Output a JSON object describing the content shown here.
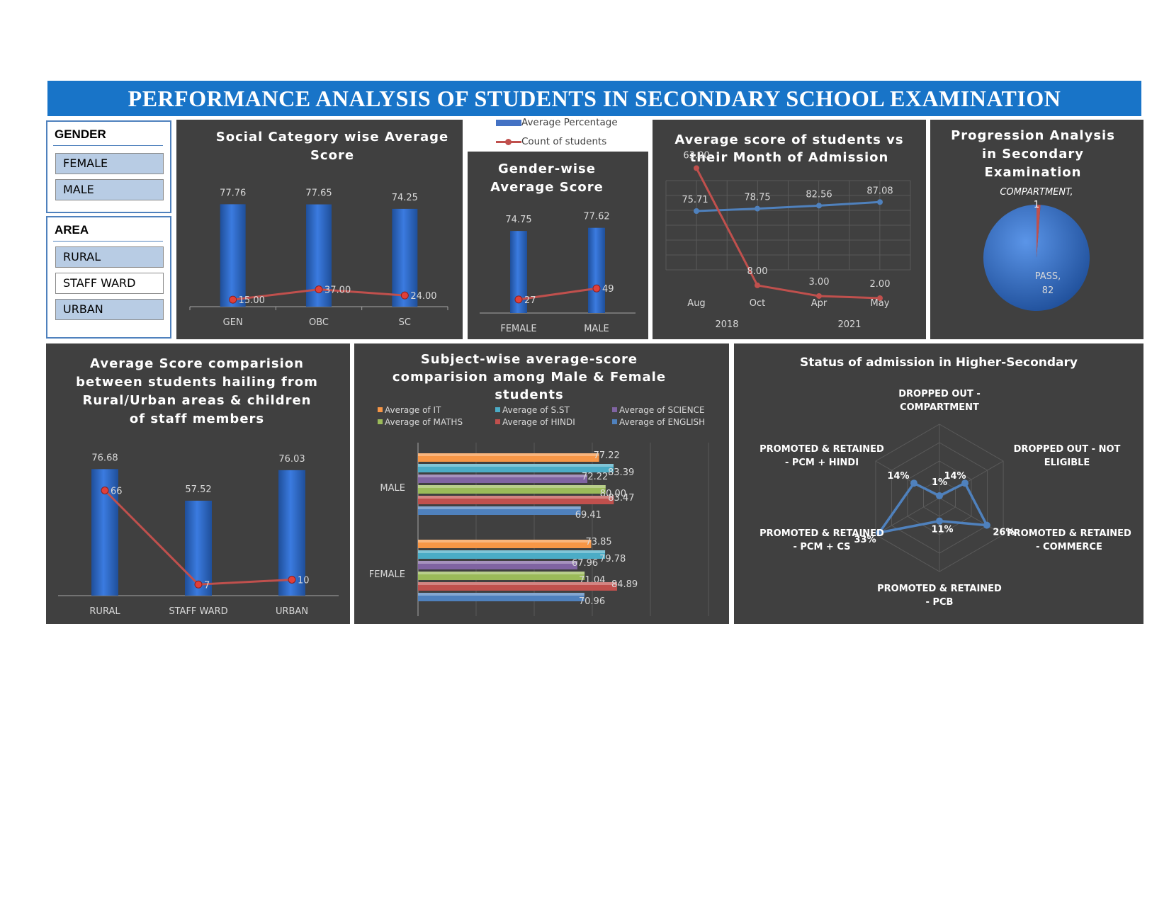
{
  "title": "PERFORMANCE ANALYSIS OF STUDENTS IN SECONDARY SCHOOL EXAMINATION",
  "slicers": {
    "gender": {
      "title": "GENDER",
      "items": [
        {
          "label": "FEMALE",
          "selected": true
        },
        {
          "label": "MALE",
          "selected": true
        }
      ]
    },
    "area": {
      "title": "AREA",
      "items": [
        {
          "label": "RURAL",
          "selected": true
        },
        {
          "label": "STAFF WARD",
          "selected": false
        },
        {
          "label": "URBAN",
          "selected": true
        }
      ]
    }
  },
  "legend_shared": {
    "bar": "Average Percentage",
    "line": "Count of students",
    "bar_color": "#4472c4",
    "line_color": "#c0504d"
  },
  "chart_data": [
    {
      "id": "social",
      "type": "bar",
      "title": "Social Category wise Average Score",
      "title_lines": [
        "Social Category wise Average",
        "Score"
      ],
      "categories": [
        "GEN",
        "OBC",
        "SC"
      ],
      "series": [
        {
          "name": "Average Percentage",
          "type": "bar",
          "values": [
            77.76,
            77.65,
            74.25
          ],
          "labels": [
            "77.76",
            "77.65",
            "74.25"
          ]
        },
        {
          "name": "Count of students",
          "type": "line",
          "values": [
            15,
            37,
            24
          ],
          "labels": [
            "15.00",
            "37.00",
            "24.00"
          ]
        }
      ]
    },
    {
      "id": "gender",
      "type": "bar",
      "title": "Gender-wise Average Score",
      "title_lines": [
        "Gender-wise",
        "Average Score"
      ],
      "categories": [
        "FEMALE",
        "MALE"
      ],
      "series": [
        {
          "name": "Average Percentage",
          "type": "bar",
          "values": [
            74.75,
            77.62
          ],
          "labels": [
            "74.75",
            "77.62"
          ]
        },
        {
          "name": "Count of students",
          "type": "line",
          "values": [
            27,
            49
          ],
          "labels": [
            "27",
            "49"
          ]
        }
      ]
    },
    {
      "id": "month",
      "type": "line",
      "title": "Average score of students vs their Month of Admission",
      "title_lines": [
        "Average score of students vs",
        "their Month of Admission"
      ],
      "categories": [
        "Aug",
        "Oct",
        "Apr",
        "May"
      ],
      "groups": [
        {
          "label": "2018",
          "span": [
            0,
            1
          ]
        },
        {
          "label": "2021",
          "span": [
            2,
            3
          ]
        }
      ],
      "series": [
        {
          "name": "Average Percentage",
          "values": [
            75.71,
            78.75,
            82.56,
            87.08
          ],
          "labels": [
            "75.71",
            "78.75",
            "82.56",
            "87.08"
          ],
          "color": "#4f81bd"
        },
        {
          "name": "Count of students",
          "values": [
            63,
            8,
            3,
            2
          ],
          "labels": [
            "63.00",
            "8.00",
            "3.00",
            "2.00"
          ],
          "color": "#c0504d"
        }
      ]
    },
    {
      "id": "progression",
      "type": "pie",
      "title": "Progression Analysis in Secondary Examination",
      "title_lines": [
        "Progression Analysis",
        "in Secondary",
        "Examination"
      ],
      "slices": [
        {
          "label": "PASS",
          "value": 82,
          "text1": "PASS,",
          "text2": "82",
          "color": "#4472c4"
        },
        {
          "label": "COMPARTMENT",
          "value": 1,
          "text1": "COMPARTMENT,",
          "text2": "1",
          "color": "#c0504d"
        }
      ]
    },
    {
      "id": "area",
      "type": "bar",
      "title": "Average Score comparision between students hailing from Rural/Urban areas & children of staff members",
      "title_lines": [
        "Average Score comparision",
        "between students hailing from",
        "Rural/Urban areas & children",
        "of staff members"
      ],
      "categories": [
        "RURAL",
        "STAFF WARD",
        "URBAN"
      ],
      "series": [
        {
          "name": "Average Percentage",
          "type": "bar",
          "values": [
            76.68,
            57.52,
            76.03
          ],
          "labels": [
            "76.68",
            "57.52",
            "76.03"
          ]
        },
        {
          "name": "Count of students",
          "type": "line",
          "values": [
            66,
            7,
            10
          ],
          "labels": [
            "66",
            "7",
            "10"
          ]
        }
      ]
    },
    {
      "id": "subject",
      "type": "bar",
      "orientation": "horizontal",
      "title": "Subject-wise average-score comparision among Male & Female students",
      "title_lines": [
        "Subject-wise average-score",
        "comparision among Male & Female",
        "students"
      ],
      "categories": [
        "MALE",
        "FEMALE"
      ],
      "xlim": [
        0,
        100
      ],
      "series": [
        {
          "name": "Average of IT",
          "color": "#f79646",
          "values": [
            77.22,
            73.85
          ],
          "labels": [
            "77.22",
            "73.85"
          ]
        },
        {
          "name": "Average of S.ST",
          "color": "#4bacc6",
          "values": [
            83.39,
            79.78
          ],
          "labels": [
            "83.39",
            "79.78"
          ]
        },
        {
          "name": "Average of SCIENCE",
          "color": "#8064a2",
          "values": [
            72.22,
            67.96
          ],
          "labels": [
            "72.22",
            "67.96"
          ]
        },
        {
          "name": "Average of MATHS",
          "color": "#9bbb59",
          "values": [
            80.0,
            71.04
          ],
          "labels": [
            "80.00",
            "71.04"
          ]
        },
        {
          "name": "Average of HINDI",
          "color": "#c0504d",
          "values": [
            83.47,
            84.89
          ],
          "labels": [
            "83.47",
            "84.89"
          ]
        },
        {
          "name": "Average of ENGLISH",
          "color": "#4f81bd",
          "values": [
            69.41,
            70.96
          ],
          "labels": [
            "69.41",
            "70.96"
          ]
        }
      ]
    },
    {
      "id": "admission",
      "type": "radar",
      "title": "Status of admission in Higher-Secondary",
      "axes": [
        {
          "label1": "DROPPED OUT -",
          "label2": "COMPARTMENT",
          "value": 1,
          "text": "1%"
        },
        {
          "label1": "DROPPED OUT -  NOT",
          "label2": "ELIGIBLE",
          "value": 14,
          "text": "14%"
        },
        {
          "label1": "PROMOTED & RETAINED",
          "label2": "-  COMMERCE",
          "value": 26,
          "text": "26%"
        },
        {
          "label1": "PROMOTED & RETAINED",
          "label2": "-  PCB",
          "value": 11,
          "text": "11%"
        },
        {
          "label1": "PROMOTED & RETAINED",
          "label2": "-  PCM + CS",
          "value": 33,
          "text": "33%"
        },
        {
          "label1": "PROMOTED & RETAINED",
          "label2": "-  PCM + HINDI",
          "value": 14,
          "text": "14%"
        }
      ],
      "rmax": 35
    }
  ]
}
